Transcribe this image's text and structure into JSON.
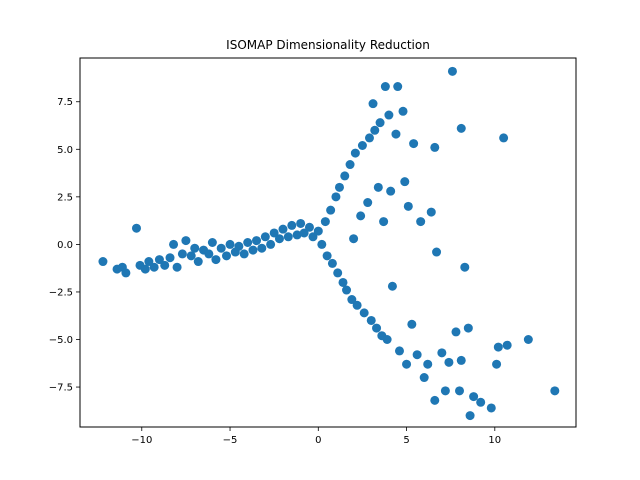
{
  "chart_data": {
    "type": "scatter",
    "title": "ISOMAP Dimensionality Reduction",
    "xlabel": "",
    "ylabel": "",
    "xlim": [
      -13.5,
      14.6
    ],
    "ylim": [
      -9.6,
      9.8
    ],
    "xticks": [
      -10,
      -5,
      0,
      5,
      10
    ],
    "xtick_labels": [
      "−10",
      "−5",
      "0",
      "5",
      "10"
    ],
    "yticks": [
      -7.5,
      -5.0,
      -2.5,
      0.0,
      2.5,
      5.0,
      7.5
    ],
    "ytick_labels": [
      "−7.5",
      "−5.0",
      "−2.5",
      "0.0",
      "2.5",
      "5.0",
      "7.5"
    ],
    "grid": false,
    "marker_color": "#1f77b4",
    "points": [
      [
        -12.2,
        -0.9
      ],
      [
        -11.4,
        -1.3
      ],
      [
        -11.1,
        -1.2
      ],
      [
        -10.9,
        -1.5
      ],
      [
        -10.3,
        0.85
      ],
      [
        -10.1,
        -1.1
      ],
      [
        -9.8,
        -1.3
      ],
      [
        -9.6,
        -0.9
      ],
      [
        -9.3,
        -1.2
      ],
      [
        -9.0,
        -0.8
      ],
      [
        -8.7,
        -1.1
      ],
      [
        -8.4,
        -0.7
      ],
      [
        -8.2,
        0.0
      ],
      [
        -8.0,
        -1.2
      ],
      [
        -7.7,
        -0.5
      ],
      [
        -7.5,
        0.2
      ],
      [
        -7.2,
        -0.6
      ],
      [
        -7.0,
        -0.2
      ],
      [
        -6.8,
        -0.9
      ],
      [
        -6.5,
        -0.3
      ],
      [
        -6.2,
        -0.5
      ],
      [
        -6.0,
        0.1
      ],
      [
        -5.8,
        -0.8
      ],
      [
        -5.5,
        -0.2
      ],
      [
        -5.2,
        -0.6
      ],
      [
        -5.0,
        0.0
      ],
      [
        -4.7,
        -0.4
      ],
      [
        -4.5,
        -0.1
      ],
      [
        -4.2,
        -0.5
      ],
      [
        -4.0,
        0.1
      ],
      [
        -3.7,
        -0.3
      ],
      [
        -3.5,
        0.2
      ],
      [
        -3.2,
        -0.2
      ],
      [
        -3.0,
        0.4
      ],
      [
        -2.7,
        0.0
      ],
      [
        -2.5,
        0.6
      ],
      [
        -2.2,
        0.3
      ],
      [
        -2.0,
        0.8
      ],
      [
        -1.7,
        0.4
      ],
      [
        -1.5,
        1.0
      ],
      [
        -1.2,
        0.5
      ],
      [
        -1.0,
        1.1
      ],
      [
        -0.8,
        0.6
      ],
      [
        -0.5,
        0.9
      ],
      [
        -0.3,
        0.4
      ],
      [
        0.0,
        0.7
      ],
      [
        0.2,
        0.0
      ],
      [
        0.4,
        1.2
      ],
      [
        0.5,
        -0.6
      ],
      [
        0.7,
        1.8
      ],
      [
        0.8,
        -1.0
      ],
      [
        1.0,
        2.5
      ],
      [
        1.1,
        -1.5
      ],
      [
        1.2,
        3.0
      ],
      [
        1.4,
        -2.0
      ],
      [
        1.5,
        3.6
      ],
      [
        1.6,
        -2.4
      ],
      [
        1.8,
        4.2
      ],
      [
        1.9,
        -2.9
      ],
      [
        2.0,
        0.3
      ],
      [
        2.1,
        4.8
      ],
      [
        2.2,
        -3.2
      ],
      [
        2.4,
        1.5
      ],
      [
        2.5,
        5.2
      ],
      [
        2.6,
        -3.6
      ],
      [
        2.8,
        2.2
      ],
      [
        2.9,
        5.6
      ],
      [
        3.0,
        -4.0
      ],
      [
        3.1,
        7.4
      ],
      [
        3.2,
        6.0
      ],
      [
        3.3,
        -4.4
      ],
      [
        3.4,
        3.0
      ],
      [
        3.5,
        6.4
      ],
      [
        3.6,
        -4.8
      ],
      [
        3.7,
        1.2
      ],
      [
        3.8,
        8.3
      ],
      [
        3.9,
        -5.0
      ],
      [
        4.0,
        6.8
      ],
      [
        4.1,
        2.8
      ],
      [
        4.2,
        -2.2
      ],
      [
        4.4,
        5.8
      ],
      [
        4.5,
        8.3
      ],
      [
        4.6,
        -5.6
      ],
      [
        4.8,
        7.0
      ],
      [
        4.9,
        3.3
      ],
      [
        5.0,
        -6.3
      ],
      [
        5.1,
        2.0
      ],
      [
        5.3,
        -4.2
      ],
      [
        5.4,
        5.3
      ],
      [
        5.6,
        -5.8
      ],
      [
        5.8,
        1.2
      ],
      [
        6.0,
        -7.0
      ],
      [
        6.2,
        -6.3
      ],
      [
        6.4,
        1.7
      ],
      [
        6.6,
        5.1
      ],
      [
        6.7,
        -0.4
      ],
      [
        7.0,
        -5.7
      ],
      [
        7.2,
        -7.7
      ],
      [
        7.4,
        -6.2
      ],
      [
        7.6,
        9.1
      ],
      [
        7.8,
        -4.6
      ],
      [
        8.0,
        -7.7
      ],
      [
        8.1,
        6.1
      ],
      [
        8.3,
        -1.2
      ],
      [
        8.5,
        -4.4
      ],
      [
        8.6,
        -9.0
      ],
      [
        8.8,
        -8.0
      ],
      [
        9.2,
        -8.3
      ],
      [
        9.8,
        -8.6
      ],
      [
        10.1,
        -6.3
      ],
      [
        10.2,
        -5.4
      ],
      [
        10.7,
        -5.3
      ],
      [
        10.5,
        5.6
      ],
      [
        11.9,
        -5.0
      ],
      [
        13.4,
        -7.7
      ],
      [
        6.6,
        -8.2
      ],
      [
        8.1,
        -6.1
      ]
    ]
  }
}
